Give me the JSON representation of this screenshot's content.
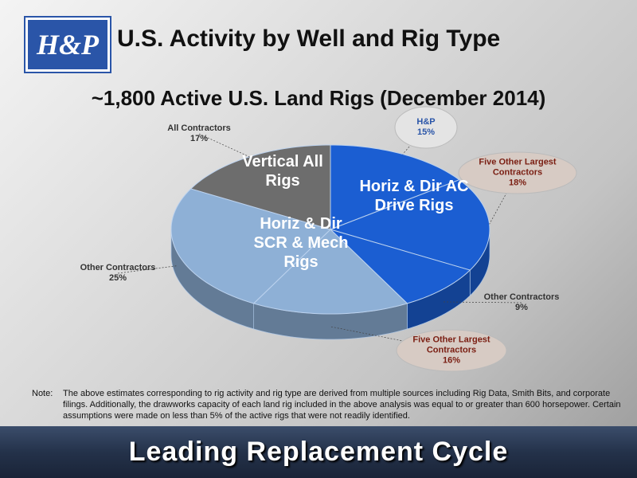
{
  "header": {
    "logo": "H&P",
    "title": "U.S. Activity by Well and Rig Type"
  },
  "chart_data": {
    "type": "pie3d",
    "title": "~1,800 Active U.S. Land Rigs (December 2014)",
    "groups": [
      {
        "label": "Horiz & Dir AC Drive Rigs",
        "color": "#1b5ed2",
        "categories": [
          "H&P",
          "Five Other Largest Contractors",
          "Other Contractors"
        ],
        "values": [
          15,
          18,
          9
        ],
        "value_labels": [
          "15%",
          "18%",
          "9%"
        ]
      },
      {
        "label": "Horiz & Dir SCR & Mech Rigs",
        "color": "#8eb0d6",
        "categories": [
          "Five Other Largest Contractors",
          "Other Contractors"
        ],
        "values": [
          16,
          25
        ],
        "value_labels": [
          "16%",
          "25%"
        ]
      },
      {
        "label": "Vertical All Rigs",
        "color": "#6d6d6d",
        "categories": [
          "All Contractors"
        ],
        "values": [
          17
        ],
        "value_labels": [
          "17%"
        ]
      }
    ]
  },
  "note": {
    "label": "Note:",
    "text": "The above estimates corresponding to rig activity and rig type are derived from multiple sources including Rig Data, Smith Bits, and corporate filings. Additionally, the drawworks capacity of each land rig included in the above analysis was equal to or greater than 600 horsepower. Certain assumptions were made on less than 5% of the active rigs that were not readily identified."
  },
  "footer": {
    "text": "Leading Replacement Cycle"
  }
}
